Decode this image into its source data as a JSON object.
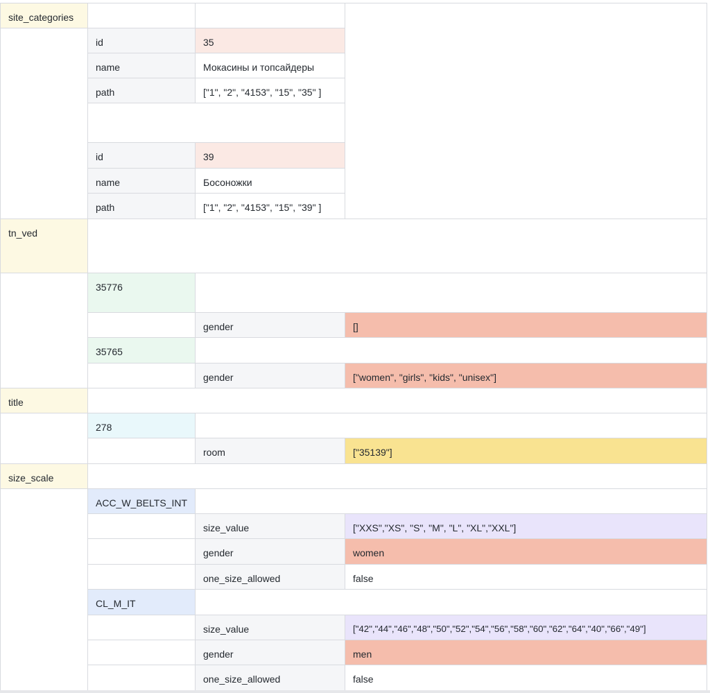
{
  "site_categories": {
    "key": "site_categories",
    "items": [
      {
        "id_label": "id",
        "id_value": "35",
        "name_label": "name",
        "name_value": "Мокасины и топсайдеры",
        "path_label": "path",
        "path_value": "[\"1\", \"2\", \"4153\", \"15\", \"35\" ]"
      },
      {
        "id_label": "id",
        "id_value": "39",
        "name_label": "name",
        "name_value": "Босоножки",
        "path_label": "path",
        "path_value": "[\"1\", \"2\", \"4153\", \"15\", \"39\" ]"
      }
    ]
  },
  "tn_ved": {
    "key": "tn_ved",
    "codes": [
      {
        "code": "35776",
        "field": "gender",
        "value": "[]"
      },
      {
        "code": "35765",
        "field": "gender",
        "value": "[\"women\", \"girls\", \"kids\", \"unisex\"]"
      }
    ]
  },
  "title": {
    "key": "title",
    "code": "278",
    "field": "room",
    "value": "[\"35139\"]"
  },
  "size_scale": {
    "key": "size_scale",
    "scales": [
      {
        "name": "ACC_W_BELTS_INT",
        "size_value_label": "size_value",
        "size_value": "[\"XXS\",\"XS\", \"S\", \"M\", \"L\", \"XL\",\"XXL\"]",
        "gender_label": "gender",
        "gender": "women",
        "one_size_label": "one_size_allowed",
        "one_size": "false"
      },
      {
        "name": "CL_M_IT",
        "size_value_label": "size_value",
        "size_value": "[\"42\",\"44\",\"46\",\"48\",\"50\",\"52\",\"54\",\"56\",\"58\",\"60\",\"62\",\"64\",\"40\",\"66\",\"49\"]",
        "gender_label": "gender",
        "gender": "men",
        "one_size_label": "one_size_allowed",
        "one_size": "false"
      }
    ]
  },
  "colors": {
    "key_bg": "#fdf9e3",
    "label_bg": "#f5f6f8",
    "id_bg": "#fbe9e4",
    "code_bg": "#eaf8ef",
    "title_code_bg": "#e9f8fb",
    "scale_bg": "#e2ebfb",
    "gender_bg": "#f5bdac",
    "room_bg": "#f9e391",
    "size_bg": "#e9e4fb"
  }
}
